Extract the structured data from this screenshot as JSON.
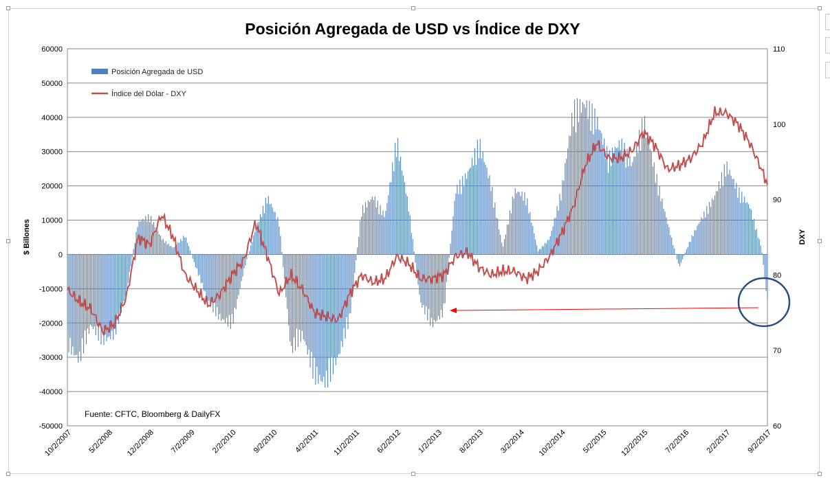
{
  "chart_data": {
    "type": "bar",
    "title": "Posición Agregada de USD vs Índice de DXY",
    "ylabel_left": "$ Billones",
    "ylabel_right": "DXY",
    "ylim_left": [
      -50000,
      60000
    ],
    "ylim_right": [
      60,
      110
    ],
    "yticks_left": [
      -50000,
      -40000,
      -30000,
      -20000,
      -10000,
      0,
      10000,
      20000,
      30000,
      40000,
      50000,
      60000
    ],
    "yticks_right": [
      60,
      70,
      80,
      90,
      100,
      110
    ],
    "xtick_labels": [
      "10/2/2007",
      "5/2/2008",
      "12/2/2008",
      "7/2/2009",
      "2/2/2010",
      "9/2/2010",
      "4/2/2011",
      "11/2/2011",
      "6/2/2012",
      "1/2/2013",
      "8/2/2013",
      "3/2/2014",
      "10/2/2014",
      "5/2/2015",
      "12/2/2015",
      "7/2/2016",
      "2/2/2017",
      "9/2/2017"
    ],
    "grid": true,
    "legend_placement": "top-left",
    "source": "Fuente: CFTC, Bloomberg & DailyFX",
    "series": [
      {
        "name": "Posición Agregada de USD",
        "type": "bar",
        "axis": "left",
        "color": "#4f81bd",
        "x": [
          "2007-10",
          "2007-12",
          "2008-02",
          "2008-04",
          "2008-06",
          "2008-08",
          "2008-10",
          "2008-12",
          "2009-02",
          "2009-04",
          "2009-06",
          "2009-08",
          "2009-10",
          "2009-12",
          "2010-02",
          "2010-04",
          "2010-06",
          "2010-08",
          "2010-10",
          "2010-12",
          "2011-02",
          "2011-04",
          "2011-06",
          "2011-08",
          "2011-10",
          "2011-12",
          "2012-02",
          "2012-04",
          "2012-06",
          "2012-08",
          "2012-10",
          "2012-12",
          "2013-02",
          "2013-04",
          "2013-06",
          "2013-08",
          "2013-10",
          "2013-12",
          "2014-02",
          "2014-04",
          "2014-06",
          "2014-08",
          "2014-10",
          "2014-12",
          "2015-02",
          "2015-04",
          "2015-06",
          "2015-08",
          "2015-10",
          "2015-12",
          "2016-02",
          "2016-04",
          "2016-06",
          "2016-08",
          "2016-10",
          "2016-12",
          "2017-02",
          "2017-04",
          "2017-06",
          "2017-08",
          "2017-09"
        ],
        "values": [
          -28000,
          -33000,
          -22000,
          -27000,
          -25000,
          -12000,
          10000,
          12000,
          5000,
          2000,
          6000,
          -5000,
          -15000,
          -20000,
          -22000,
          -5000,
          8000,
          18000,
          10000,
          -30000,
          -25000,
          -38000,
          -40000,
          -32000,
          -20000,
          14000,
          18000,
          12000,
          36000,
          15000,
          -15000,
          -22000,
          -18000,
          20000,
          25000,
          35000,
          22000,
          2000,
          20000,
          18000,
          1000,
          5000,
          20000,
          45000,
          47000,
          42000,
          30000,
          35000,
          28000,
          42000,
          25000,
          10000,
          -4000,
          5000,
          12000,
          18000,
          28000,
          20000,
          15000,
          2000,
          -15000
        ]
      },
      {
        "name": "Índice del Dólar - DXY",
        "type": "line",
        "axis": "right",
        "color": "#c0504d",
        "x": [
          "2007-10",
          "2007-12",
          "2008-02",
          "2008-04",
          "2008-06",
          "2008-08",
          "2008-10",
          "2008-12",
          "2009-02",
          "2009-04",
          "2009-06",
          "2009-08",
          "2009-10",
          "2009-12",
          "2010-02",
          "2010-04",
          "2010-06",
          "2010-08",
          "2010-10",
          "2010-12",
          "2011-02",
          "2011-04",
          "2011-06",
          "2011-08",
          "2011-10",
          "2011-12",
          "2012-02",
          "2012-04",
          "2012-06",
          "2012-08",
          "2012-10",
          "2012-12",
          "2013-02",
          "2013-04",
          "2013-06",
          "2013-08",
          "2013-10",
          "2013-12",
          "2014-02",
          "2014-04",
          "2014-06",
          "2014-08",
          "2014-10",
          "2014-12",
          "2015-02",
          "2015-04",
          "2015-06",
          "2015-08",
          "2015-10",
          "2015-12",
          "2016-02",
          "2016-04",
          "2016-06",
          "2016-08",
          "2016-10",
          "2016-12",
          "2017-02",
          "2017-04",
          "2017-06",
          "2017-08",
          "2017-09"
        ],
        "values": [
          78,
          76.5,
          75.5,
          72.5,
          73.5,
          77,
          85,
          84,
          88,
          85,
          80,
          78,
          76,
          77.5,
          80,
          82,
          87,
          82.5,
          77.5,
          80,
          78,
          75,
          74.5,
          74,
          77.5,
          80,
          79,
          79.5,
          82.5,
          81.5,
          79.5,
          79.5,
          80,
          82.5,
          83,
          81,
          80,
          80.5,
          80.5,
          79.5,
          80.5,
          82.5,
          85.5,
          89,
          94.5,
          97.5,
          95.5,
          95.5,
          96.5,
          99,
          97,
          94,
          94.5,
          95.5,
          97.5,
          101.5,
          101.5,
          100,
          97.5,
          94,
          92
        ]
      }
    ],
    "annotations": {
      "arrow": "from latest bars pointing left to early 2013 level",
      "circle": "latest readings (2017)"
    }
  }
}
